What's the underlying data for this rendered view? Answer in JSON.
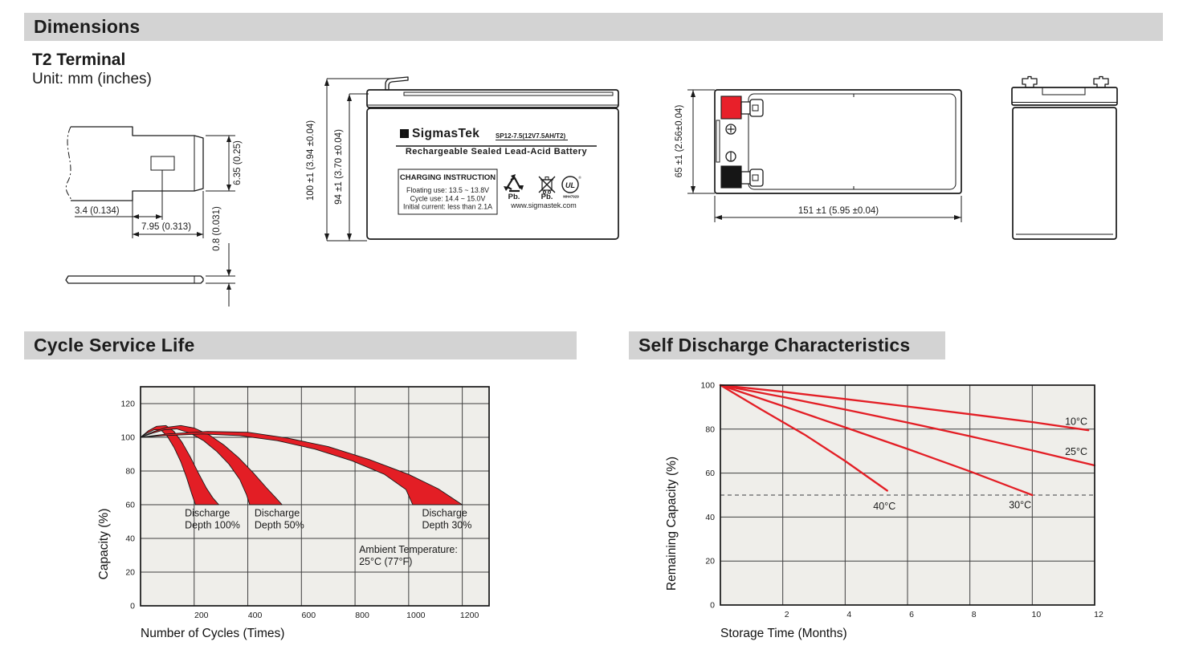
{
  "header": {
    "title": "Dimensions"
  },
  "dimensions_section": {
    "terminal_type": "T2 Terminal",
    "unit_note": "Unit: mm (inches)",
    "terminal_detail": {
      "dim_offset": "3.4 (0.134)",
      "dim_width": "7.95 (0.313)",
      "dim_height": "6.35 (0.25)",
      "dim_thickness": "0.8 (0.031)"
    },
    "front_view": {
      "dim_total_height": "100 ±1 (3.94 ±0.04)",
      "dim_case_height": "94 ±1 (3.70 ±0.04)"
    },
    "top_view": {
      "dim_width": "65 ±1 (2.56±0.04)",
      "dim_length": "151 ±1 (5.95 ±0.04)"
    },
    "label": {
      "logo_glyph": "Σ",
      "brand": "SigmasTek",
      "model": "SP12-7.5(12V7.5AH/T2)",
      "type_line": "Rechargeable Sealed Lead-Acid Battery",
      "charging_title": "CHARGING INSTRUCTION",
      "charging_lines": [
        "Floating use: 13.5 ~ 13.8V",
        "Cycle use: 14.4 ~ 15.0V",
        "Initial current: less than 2.1A"
      ],
      "pb1": "Pb.",
      "pb2": "Pb.",
      "ul_letters": "UL",
      "ul_code": "MH47929",
      "website": "www.sigmastek.com"
    }
  },
  "colors": {
    "red": "#e31e25",
    "grid": "#3f3f3f",
    "frame": "#161616",
    "plot_bg": "#efeeea",
    "header_bg": "#d3d3d3",
    "dashed": "#8a8a8a"
  },
  "chart_data": [
    {
      "type": "area",
      "title": "Cycle Service Life",
      "xlabel": "Number of Cycles (Times)",
      "ylabel": "Capacity (%)",
      "xlim": [
        0,
        1300
      ],
      "ylim": [
        0,
        130
      ],
      "xticks": [
        200,
        400,
        600,
        800,
        1000,
        1200
      ],
      "yticks": [
        0,
        20,
        40,
        60,
        80,
        100,
        120
      ],
      "xtick_offset": 9,
      "grid": true,
      "legend": "none",
      "bands": [
        {
          "name": "Discharge Depth 100%",
          "upper": [
            [
              0,
              100
            ],
            [
              30,
              104
            ],
            [
              60,
              106.5
            ],
            [
              95,
              107
            ],
            [
              125,
              103.5
            ],
            [
              155,
              97
            ],
            [
              185,
              88.5
            ],
            [
              215,
              79
            ],
            [
              245,
              70
            ],
            [
              270,
              64
            ],
            [
              292,
              60
            ]
          ],
          "lower": [
            [
              0,
              100
            ],
            [
              25,
              102.5
            ],
            [
              50,
              104.5
            ],
            [
              75,
              104.5
            ],
            [
              100,
              100.5
            ],
            [
              125,
              94
            ],
            [
              150,
              85.5
            ],
            [
              172,
              76
            ],
            [
              190,
              67
            ],
            [
              205,
              60
            ]
          ]
        },
        {
          "name": "Discharge Depth 50%",
          "upper": [
            [
              0,
              100
            ],
            [
              50,
              103.5
            ],
            [
              100,
              106
            ],
            [
              150,
              107
            ],
            [
              200,
              105.5
            ],
            [
              255,
              101.5
            ],
            [
              310,
              95.5
            ],
            [
              365,
              88
            ],
            [
              420,
              79
            ],
            [
              470,
              70
            ],
            [
              505,
              64
            ],
            [
              528,
              60
            ]
          ],
          "lower": [
            [
              0,
              100
            ],
            [
              45,
              102.5
            ],
            [
              90,
              104.5
            ],
            [
              135,
              105
            ],
            [
              185,
              102.5
            ],
            [
              235,
              98
            ],
            [
              285,
              91.5
            ],
            [
              330,
              84
            ],
            [
              370,
              75
            ],
            [
              395,
              66
            ],
            [
              407,
              60
            ]
          ]
        },
        {
          "name": "Discharge Depth 30%",
          "upper": [
            [
              0,
              100
            ],
            [
              100,
              102
            ],
            [
              250,
              103.5
            ],
            [
              400,
              103
            ],
            [
              550,
              99.5
            ],
            [
              700,
              94.5
            ],
            [
              850,
              87
            ],
            [
              1000,
              78
            ],
            [
              1110,
              69.5
            ],
            [
              1200,
              60
            ]
          ],
          "lower": [
            [
              0,
              100
            ],
            [
              90,
              101
            ],
            [
              230,
              102
            ],
            [
              370,
              101
            ],
            [
              510,
              98
            ],
            [
              650,
              93
            ],
            [
              790,
              86
            ],
            [
              910,
              78
            ],
            [
              990,
              69
            ],
            [
              1015,
              60
            ]
          ]
        }
      ],
      "annotations": [
        {
          "x": 165,
          "y": 53,
          "lines": [
            "Discharge",
            "Depth 100%"
          ]
        },
        {
          "x": 425,
          "y": 53,
          "lines": [
            "Discharge",
            "Depth 50%"
          ]
        },
        {
          "x": 1050,
          "y": 53,
          "lines": [
            "Discharge",
            "Depth 30%"
          ]
        },
        {
          "x": 815,
          "y": 31.5,
          "lines": [
            "Ambient Temperature:",
            "25°C (77°F)"
          ]
        }
      ]
    },
    {
      "type": "line",
      "title": "Self Discharge Characteristics",
      "xlabel": "Storage Time (Months)",
      "ylabel": "Remaining Capacity (%)",
      "xlim": [
        0,
        12
      ],
      "ylim": [
        0,
        100
      ],
      "xticks": [
        2,
        4,
        6,
        8,
        10,
        12
      ],
      "yticks": [
        0,
        20,
        40,
        60,
        80,
        100
      ],
      "xtick_offset": 5,
      "grid": true,
      "legend": "inline-labels",
      "dashed_line_y": 50,
      "series": [
        {
          "name": "10°C",
          "points": [
            [
              0,
              100
            ],
            [
              2,
              97
            ],
            [
              4,
              93.7
            ],
            [
              6,
              90.3
            ],
            [
              8,
              86.8
            ],
            [
              10,
              83.2
            ],
            [
              11.8,
              79.5
            ]
          ],
          "label_pos": [
            11.05,
            82
          ]
        },
        {
          "name": "25°C",
          "points": [
            [
              0,
              100
            ],
            [
              2,
              94.6
            ],
            [
              4,
              88.9
            ],
            [
              6,
              83
            ],
            [
              8,
              76.8
            ],
            [
              10,
              70.3
            ],
            [
              12,
              63.5
            ]
          ],
          "label_pos": [
            11.05,
            68.3
          ]
        },
        {
          "name": "30°C",
          "points": [
            [
              0,
              100
            ],
            [
              2,
              90.5
            ],
            [
              4,
              80.8
            ],
            [
              6,
              71
            ],
            [
              8,
              60.8
            ],
            [
              10,
              50
            ]
          ],
          "label_pos": [
            9.25,
            44
          ]
        },
        {
          "name": "40°C",
          "points": [
            [
              0,
              100
            ],
            [
              1.3,
              89
            ],
            [
              2.7,
              77.5
            ],
            [
              4,
              65.5
            ],
            [
              5.35,
              52
            ]
          ],
          "label_pos": [
            4.9,
            43.5
          ]
        }
      ]
    }
  ]
}
